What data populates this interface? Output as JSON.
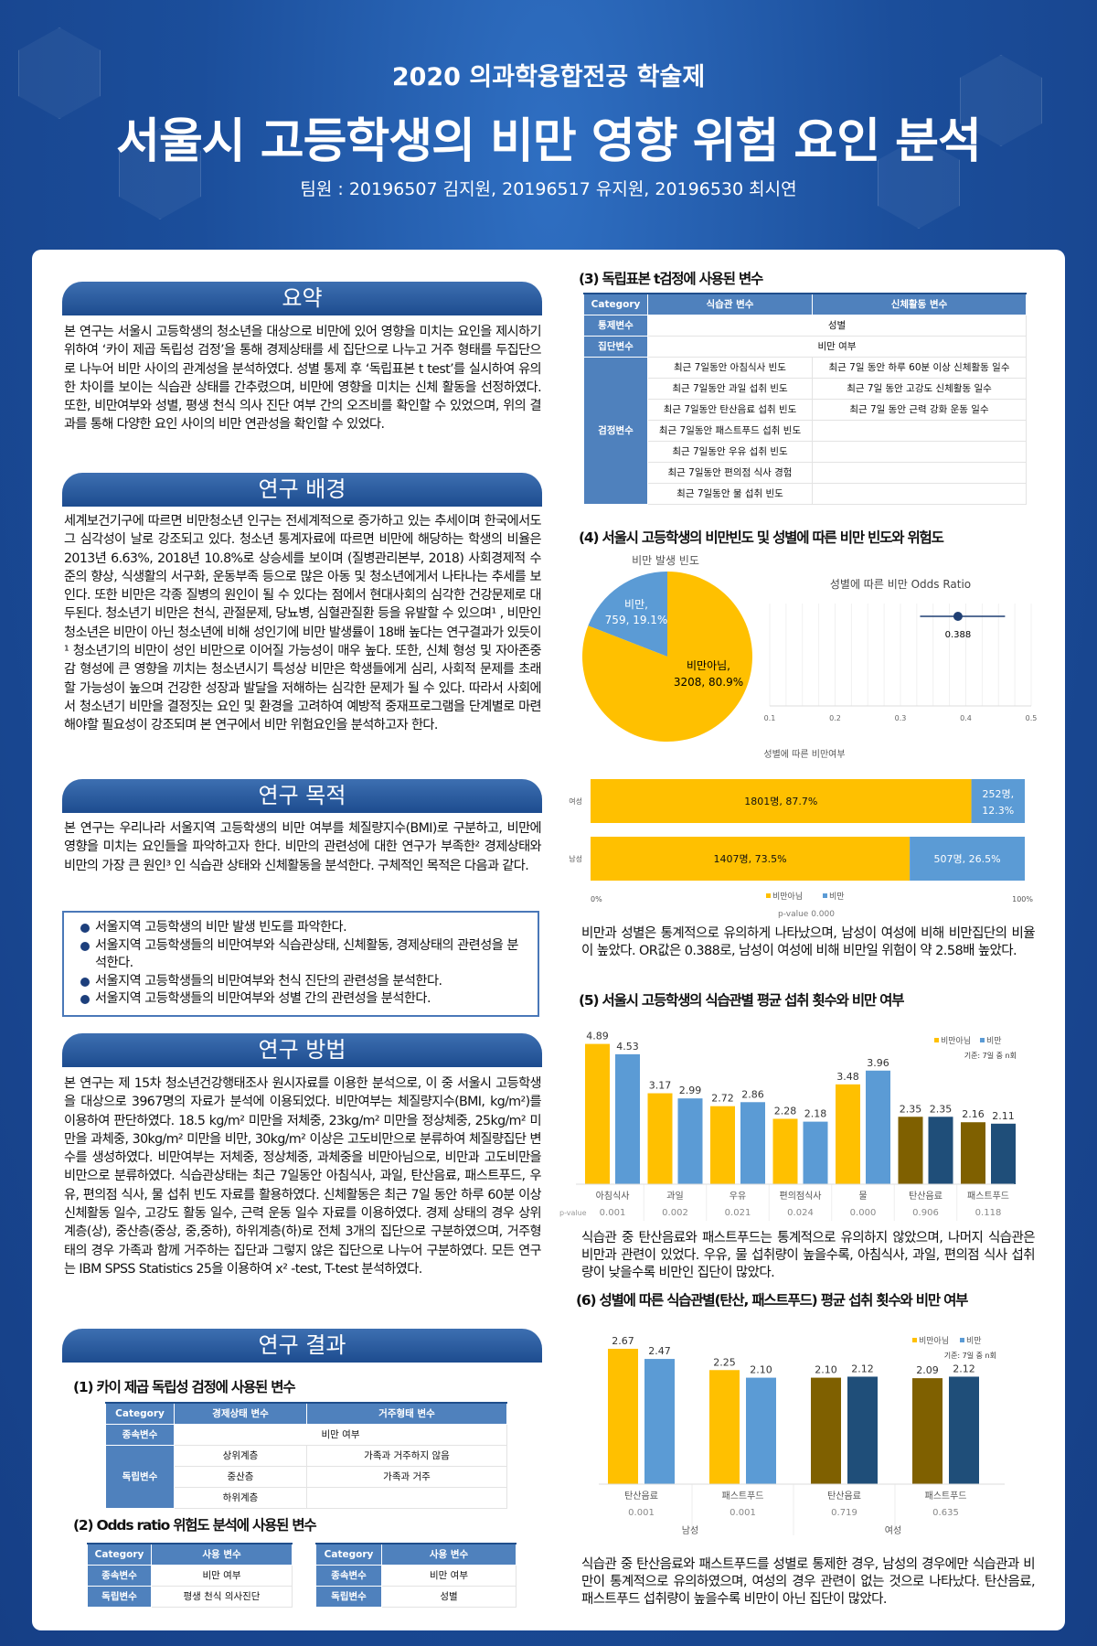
{
  "header": {
    "subtitle": "2020 의과학융합전공 학술제",
    "title": "서울시 고등학생의 비만 영향 위험 요인 분석",
    "team": "팀원 : 20196507 김지원, 20196517 유지원, 20196530 최시연"
  },
  "colors": {
    "accent": "#1d4c8f",
    "not_obese": "#ffc000",
    "obese": "#5b9bd5",
    "not_obese_dark": "#7f6000",
    "obese_dark": "#1f4e79"
  },
  "summary": {
    "heading": "요약",
    "text": "본 연구는 서울시 고등학생의 청소년을 대상으로 비만에 있어 영향을 미치는 요인을 제시하기 위하여 ‘카이 제곱 독립성 검정’을 통해 경제상태를 세 집단으로 나누고 거주 형태를 두집단으로 나누어 비만 사이의 관계성을 분석하였다. 성별 통제 후 ‘독립표본 t test’를 실시하여 유의한 차이를 보이는 식습관 상태를 간추렸으며, 비만에 영향을 미치는 신체 활동을 선정하였다. 또한, 비만여부와 성별, 평생 천식 의사 진단 여부 간의 오즈비를 확인할 수 있었으며, 위의 결과를 통해 다양한 요인 사이의 비만 연관성을 확인할 수 있었다."
  },
  "background": {
    "heading": "연구 배경",
    "text": "세계보건기구에 따르면 비만청소년 인구는 전세계적으로 증가하고 있는 추세이며 한국에서도 그 심각성이 날로 강조되고 있다. 청소년 통계자료에 따르면 비만에 해당하는 학생의 비율은 2013년 6.63%, 2018년 10.8%로 상승세를 보이며 (질병관리본부, 2018) 사회경제적 수준의 향상, 식생활의 서구화, 운동부족 등으로 많은 아동 및 청소년에게서 나타나는 추세를 보인다. 또한 비만은 각종 질병의 원인이 될 수 있다는 점에서 현대사회의 심각한 건강문제로 대두된다. 청소년기 비만은 천식, 관절문제, 당뇨병, 심혈관질환 등을 유발할 수 있으며¹ , 비만인 청소년은 비만이 아닌 청소년에 비해 성인기에 비만 발생률이 18배 높다는 연구결과가 있듯이¹ 청소년기의 비만이 성인 비만으로 이어질 가능성이 매우 높다. 또한, 신체 형성 및 자아존중감 형성에 큰 영향을 끼치는 청소년시기 특성상 비만은 학생들에게 심리, 사회적 문제를 초래할 가능성이 높으며 건강한 성장과 발달을 저해하는 심각한 문제가 될 수 있다. 따라서 사회에서 청소년기 비만을 결정짓는 요인 및 환경을 고려하여 예방적 중재프로그램을 단계별로 마련해야할 필요성이 강조되며 본 연구에서 비만 위험요인을 분석하고자 한다."
  },
  "purpose": {
    "heading": "연구 목적",
    "text": "본 연구는 우리나라 서울지역 고등학생의 비만 여부를 체질량지수(BMI)로 구분하고, 비만에 영향을 미치는 요인들을 파악하고자 한다. 비만의 관련성에 대한 연구가 부족한² 경제상태와 비만의 가장 큰 원인³ 인 식습관 상태와 신체활동을 분석한다. 구체적인 목적은 다음과 같다.",
    "goals": [
      "서울지역 고등학생의 비만 발생 빈도를 파악한다.",
      "서울지역 고등학생들의 비만여부와 식습관상태, 신체활동, 경제상태의 관련성을 분석한다.",
      "서울지역 고등학생들의 비만여부와 천식 진단의 관련성을 분석한다.",
      "서울지역 고등학생들의 비만여부와 성별 간의 관련성을 분석한다."
    ]
  },
  "method": {
    "heading": "연구 방법",
    "text": "본 연구는 제 15차 청소년건강행태조사 원시자료를 이용한 분석으로, 이 중 서울시 고등학생을 대상으로 3967명의 자료가 분석에 이용되었다. 비만여부는 체질량지수(BMI, kg/m²)를 이용하여 판단하였다. 18.5 kg/m² 미만을 저체중, 23kg/m² 미만을 정상체중, 25kg/m² 미만을 과체중, 30kg/m² 미만을 비만, 30kg/m² 이상은 고도비만으로 분류하여 체질량집단 변수를 생성하였다. 비만여부는 저체중, 정상체중, 과체중을 비만아님으로, 비만과 고도비만을 비만으로 분류하였다. 식습관상태는 최근 7일동안 아침식사, 과일, 탄산음료, 패스트푸드, 우유, 편의점 식사, 물 섭취 빈도 자료를 활용하였다. 신체활동은 최근 7일 동안 하루 60분 이상 신체활동 일수, 고강도 활동 일수, 근력 운동 일수 자료를 이용하였다. 경제 상태의 경우 상위계층(상), 중산층(중상, 중,중하), 하위계층(하)로 전체 3개의 집단으로 구분하였으며, 거주형태의 경우 가족과 함께 거주하는 집단과 그렇지 않은 집단으로 나누어 구분하였다. 모든 연구는 IBM SPSS Statistics 25을 이용하여 x² -test, T-test 분석하였다."
  },
  "results": {
    "heading": "연구 결과",
    "t1": {
      "title": "(1) 카이 제곱 독립성 검정에 사용된 변수",
      "headers": [
        "Category",
        "경제상태 변수",
        "거주형태 변수"
      ],
      "dep_label": "종속변수",
      "dep": "비만 여부",
      "ind_label": "독립변수",
      "rows": [
        [
          "상위계층",
          "가족과 거주하지 않음"
        ],
        [
          "중산층",
          "가족과 거주"
        ],
        [
          "하위계층",
          ""
        ]
      ]
    },
    "t2": {
      "title": "(2) Odds ratio 위험도 분석에 사용된 변수",
      "a": {
        "headers": [
          "Category",
          "사용 변수"
        ],
        "rows": [
          [
            "종속변수",
            "비만 여부"
          ],
          [
            "독립변수",
            "평생 천식 의사진단"
          ]
        ]
      },
      "b": {
        "headers": [
          "Category",
          "사용 변수"
        ],
        "rows": [
          [
            "종속변수",
            "비만 여부"
          ],
          [
            "독립변수",
            "성별"
          ]
        ]
      }
    },
    "t3": {
      "title": "(3) 독립표본 t검정에 사용된 변수",
      "headers": [
        "Category",
        "식습관 변수",
        "신체활동 변수"
      ],
      "ctrl_label": "통제변수",
      "ctrl": "성별",
      "grp_label": "집단변수",
      "grp": "비만 여부",
      "test_label": "검정변수",
      "rows": [
        [
          "최근 7일동안 아침식사 빈도",
          "최근 7일 동안 하루 60분 이상 신체활동 일수"
        ],
        [
          "최근 7일동안 과일 섭취 빈도",
          "최근 7일 동안 고강도 신체활동 일수"
        ],
        [
          "최근 7일동안 탄산음료 섭취 빈도",
          "최근 7일 동안 근력 강화 운동 일수"
        ],
        [
          "최근 7일동안 패스트푸드 섭취 빈도",
          ""
        ],
        [
          "최근 7일동안 우유 섭취 빈도",
          ""
        ],
        [
          "최근 7일동안 편의점 식사 경험",
          ""
        ],
        [
          "최근 7일동안 물 섭취 빈도",
          ""
        ]
      ]
    },
    "s4": {
      "title": "(4) 서울시 고등학생의 비만빈도 및 성별에 따른 비만 빈도와 위험도",
      "text": "비만과 성별은 통계적으로 유의하게 나타났으며, 남성이 여성에 비해 비만집단의 비율이 높았다. OR값은 0.388로, 남성이 여성에 비해 비만일 위험이 약 2.58배 높았다."
    },
    "s5": {
      "title": "(5) 서울시 고등학생의 식습관별 평균 섭취 횟수와 비만 여부",
      "text": "식습관 중 탄산음료와 패스트푸드는 통계적으로 유의하지 않았으며, 나머지 식습관은 비만과 관련이 있었다. 우유, 물 섭취량이 높을수록, 아침식사, 과일, 편의점 식사 섭취량이 낮을수록 비만인 집단이 많았다."
    },
    "s6": {
      "title": "(6) 성별에 따른 식습관별(탄산, 패스트푸드) 평균 섭취 횟수와 비만 여부",
      "text": "식습관 중 탄산음료와 패스트푸드를 성별로 통제한 경우, 남성의 경우에만 식습관과 비만이 통계적으로 유의하였으며, 여성의 경우 관련이 없는 것으로 나타났다. 탄산음료, 패스트푸드 섭취량이 높을수록 비만이 아닌 집단이 많았다."
    }
  },
  "chart_data": [
    {
      "type": "pie",
      "title": "비만 발생 빈도",
      "slices": [
        {
          "label": "비만",
          "count": 759,
          "percent": 19.1,
          "text": "비만,",
          "sub": "759, 19.1%"
        },
        {
          "label": "비만아님",
          "count": 3208,
          "percent": 80.9,
          "text": "비만아님,",
          "sub": "3208, 80.9%"
        }
      ]
    },
    {
      "type": "scatter",
      "title": "성별에 따른 비만 Odds Ratio",
      "value": 0.388,
      "label": "0.388",
      "ci": [
        0.33,
        0.46
      ],
      "xlim": [
        0.1,
        0.5
      ],
      "xticks": [
        "0.1",
        "0.2",
        "0.3",
        "0.4",
        "0.5"
      ]
    },
    {
      "type": "bar",
      "stacked": true,
      "title": "성별에 따른 비만여부",
      "categories": [
        "여성",
        "남성"
      ],
      "series": [
        {
          "name": "비만아님",
          "values": [
            87.7,
            73.5
          ],
          "labels": [
            "1801명, 87.7%",
            "1407명, 73.5%"
          ]
        },
        {
          "name": "비만",
          "values": [
            12.3,
            26.5
          ],
          "labels": [
            "252명, 12.3%",
            "507명, 26.5%"
          ]
        }
      ],
      "xticks": [
        "0%",
        "100%"
      ],
      "note": "p-value 0.000"
    },
    {
      "type": "bar",
      "categories": [
        "아침식사",
        "과일",
        "우유",
        "편의점식사",
        "물",
        "탄산음료",
        "패스트푸드"
      ],
      "pvalue_label": "p-value",
      "pvalues": [
        "0.001",
        "0.002",
        "0.021",
        "0.024",
        "0.000",
        "0.906",
        "0.118"
      ],
      "series": [
        {
          "name": "비만아님",
          "values": [
            4.89,
            3.17,
            2.72,
            2.28,
            3.48,
            2.35,
            2.16
          ]
        },
        {
          "name": "비만",
          "values": [
            4.53,
            2.99,
            2.86,
            2.18,
            3.96,
            2.35,
            2.11
          ]
        }
      ],
      "legend_note": "기준: 7일 중 n회",
      "significant": [
        true,
        true,
        true,
        true,
        true,
        false,
        false
      ],
      "legend": "top-right"
    },
    {
      "type": "bar",
      "categories": [
        "탄산음료",
        "패스트푸드",
        "탄산음료",
        "패스트푸드"
      ],
      "groups": [
        "남성",
        "여성"
      ],
      "pvalues": [
        "0.001",
        "0.001",
        "0.719",
        "0.635"
      ],
      "series": [
        {
          "name": "비만아님",
          "values": [
            2.67,
            2.25,
            2.1,
            2.09
          ]
        },
        {
          "name": "비만",
          "values": [
            2.47,
            2.1,
            2.12,
            2.12
          ]
        }
      ],
      "legend_note": "기준: 7일 중 n회",
      "significant": [
        true,
        true,
        false,
        false
      ],
      "legend": "top-right"
    }
  ]
}
